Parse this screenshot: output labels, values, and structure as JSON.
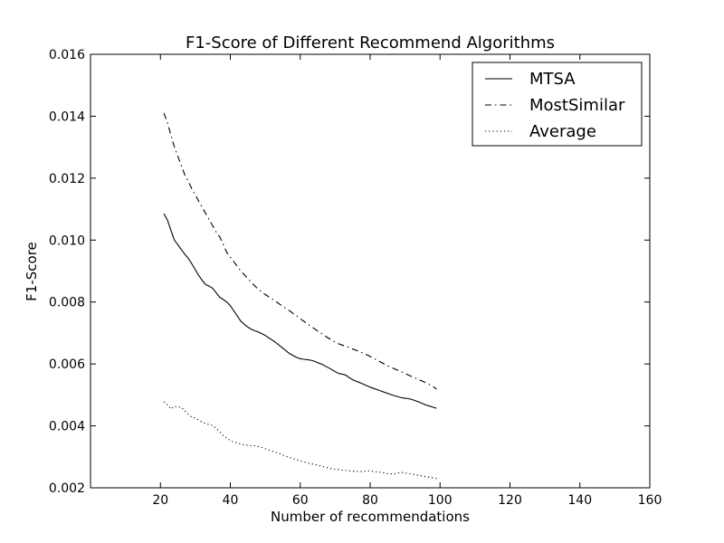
{
  "chart_data": {
    "type": "line",
    "title": "F1-Score of Different Recommend Algorithms",
    "xlabel": "Number of recommendations",
    "ylabel": "F1-Score",
    "xlim": [
      0,
      160
    ],
    "ylim": [
      0.002,
      0.016
    ],
    "xticks": [
      20,
      40,
      60,
      80,
      100,
      120,
      140,
      160
    ],
    "xtick_labels": [
      "20",
      "40",
      "60",
      "80",
      "100",
      "120",
      "140",
      "160"
    ],
    "yticks": [
      0.002,
      0.004,
      0.006,
      0.008,
      0.01,
      0.012,
      0.014,
      0.016
    ],
    "ytick_labels": [
      "0.002",
      "0.004",
      "0.006",
      "0.008",
      "0.010",
      "0.012",
      "0.014",
      "0.016"
    ],
    "grid": false,
    "legend_position": "top-right",
    "series": [
      {
        "name": "MTSA",
        "line_style": "solid",
        "color": "#000000",
        "x": [
          21,
          22,
          23,
          24,
          25,
          26,
          27,
          28,
          29,
          30,
          31,
          32,
          33,
          34,
          35,
          36,
          37,
          38,
          39,
          40,
          41,
          42,
          43,
          44,
          45,
          46,
          47,
          48,
          49,
          50,
          51,
          52,
          53,
          54,
          55,
          56,
          57,
          58,
          59,
          60,
          61,
          62,
          63,
          64,
          65,
          66,
          67,
          68,
          69,
          70,
          71,
          72,
          73,
          74,
          75,
          76,
          77,
          78,
          79,
          80,
          81,
          82,
          83,
          84,
          85,
          86,
          87,
          88,
          89,
          90,
          91,
          92,
          93,
          94,
          95,
          96,
          97,
          98,
          99
        ],
        "y": [
          0.01085,
          0.01065,
          0.01032,
          0.01,
          0.00985,
          0.00969,
          0.00954,
          0.00941,
          0.00923,
          0.00904,
          0.00885,
          0.00869,
          0.00856,
          0.00851,
          0.00844,
          0.00829,
          0.00815,
          0.00808,
          0.008,
          0.00788,
          0.00771,
          0.00755,
          0.00738,
          0.00728,
          0.00719,
          0.00712,
          0.00707,
          0.00703,
          0.00698,
          0.00692,
          0.00684,
          0.00677,
          0.00669,
          0.0066,
          0.00651,
          0.00642,
          0.00633,
          0.00627,
          0.00621,
          0.00617,
          0.00615,
          0.00614,
          0.00612,
          0.00609,
          0.00604,
          0.006,
          0.00594,
          0.00588,
          0.00582,
          0.00575,
          0.00569,
          0.00567,
          0.00564,
          0.00556,
          0.00549,
          0.00544,
          0.0054,
          0.00535,
          0.0053,
          0.00525,
          0.00521,
          0.00517,
          0.00513,
          0.00509,
          0.00505,
          0.00501,
          0.00497,
          0.00494,
          0.00491,
          0.00489,
          0.00488,
          0.00485,
          0.00481,
          0.00477,
          0.00472,
          0.00467,
          0.00464,
          0.0046,
          0.00457
        ]
      },
      {
        "name": "MostSimilar",
        "line_style": "dashdot",
        "color": "#000000",
        "x": [
          21,
          22,
          23,
          24,
          25,
          26,
          27,
          28,
          29,
          30,
          31,
          32,
          33,
          34,
          35,
          36,
          37,
          38,
          39,
          40,
          41,
          42,
          43,
          44,
          45,
          46,
          47,
          48,
          49,
          50,
          51,
          52,
          53,
          54,
          55,
          56,
          57,
          58,
          59,
          60,
          61,
          62,
          63,
          64,
          65,
          66,
          67,
          68,
          69,
          70,
          71,
          72,
          73,
          74,
          75,
          76,
          77,
          78,
          79,
          80,
          81,
          82,
          83,
          84,
          85,
          86,
          87,
          88,
          89,
          90,
          91,
          92,
          93,
          94,
          95,
          96,
          97,
          98,
          99
        ],
        "y": [
          0.0141,
          0.0138,
          0.0134,
          0.013,
          0.0127,
          0.0124,
          0.0121,
          0.0119,
          0.01165,
          0.01145,
          0.01125,
          0.01105,
          0.01085,
          0.01065,
          0.01045,
          0.01025,
          0.0101,
          0.00985,
          0.0096,
          0.00945,
          0.0093,
          0.00915,
          0.009,
          0.00888,
          0.00876,
          0.00864,
          0.00852,
          0.00841,
          0.00832,
          0.00824,
          0.00817,
          0.00809,
          0.00802,
          0.00794,
          0.00786,
          0.00779,
          0.00771,
          0.00763,
          0.00755,
          0.00746,
          0.00738,
          0.0073,
          0.00722,
          0.00714,
          0.00706,
          0.00699,
          0.00691,
          0.00684,
          0.00677,
          0.00671,
          0.00665,
          0.00661,
          0.00657,
          0.00653,
          0.00648,
          0.00644,
          0.0064,
          0.00635,
          0.0063,
          0.00624,
          0.00618,
          0.00612,
          0.00606,
          0.006,
          0.00594,
          0.00589,
          0.00584,
          0.00579,
          0.00574,
          0.00569,
          0.00564,
          0.00559,
          0.00554,
          0.00549,
          0.00544,
          0.00539,
          0.00533,
          0.00527,
          0.00519
        ]
      },
      {
        "name": "Average",
        "line_style": "dotted",
        "color": "#000000",
        "x": [
          21,
          22,
          23,
          24,
          25,
          26,
          27,
          28,
          29,
          30,
          31,
          32,
          33,
          34,
          35,
          36,
          37,
          38,
          39,
          40,
          41,
          42,
          43,
          44,
          45,
          46,
          47,
          48,
          49,
          50,
          51,
          52,
          53,
          54,
          55,
          56,
          57,
          58,
          59,
          60,
          61,
          62,
          63,
          64,
          65,
          66,
          67,
          68,
          69,
          70,
          71,
          72,
          73,
          74,
          75,
          76,
          77,
          78,
          79,
          80,
          81,
          82,
          83,
          84,
          85,
          86,
          87,
          88,
          89,
          90,
          91,
          92,
          93,
          94,
          95,
          96,
          97,
          98,
          99
        ],
        "y": [
          0.00478,
          0.00468,
          0.00455,
          0.00463,
          0.00461,
          0.0046,
          0.00448,
          0.00437,
          0.00428,
          0.00426,
          0.00418,
          0.00412,
          0.00407,
          0.00404,
          0.00401,
          0.00391,
          0.00381,
          0.00368,
          0.00361,
          0.00352,
          0.00348,
          0.00345,
          0.00341,
          0.00338,
          0.00337,
          0.00336,
          0.00336,
          0.00333,
          0.0033,
          0.00326,
          0.00322,
          0.00318,
          0.00314,
          0.00311,
          0.00306,
          0.00301,
          0.00298,
          0.00294,
          0.0029,
          0.00287,
          0.00284,
          0.0028,
          0.00278,
          0.00276,
          0.00273,
          0.0027,
          0.00267,
          0.00264,
          0.00261,
          0.0026,
          0.00259,
          0.00257,
          0.00256,
          0.00255,
          0.00254,
          0.00253,
          0.00253,
          0.00252,
          0.00254,
          0.00255,
          0.00253,
          0.00251,
          0.0025,
          0.00248,
          0.00246,
          0.00245,
          0.00245,
          0.00248,
          0.0025,
          0.00248,
          0.00246,
          0.00244,
          0.00242,
          0.0024,
          0.00238,
          0.00236,
          0.00234,
          0.00232,
          0.0023
        ]
      }
    ]
  }
}
